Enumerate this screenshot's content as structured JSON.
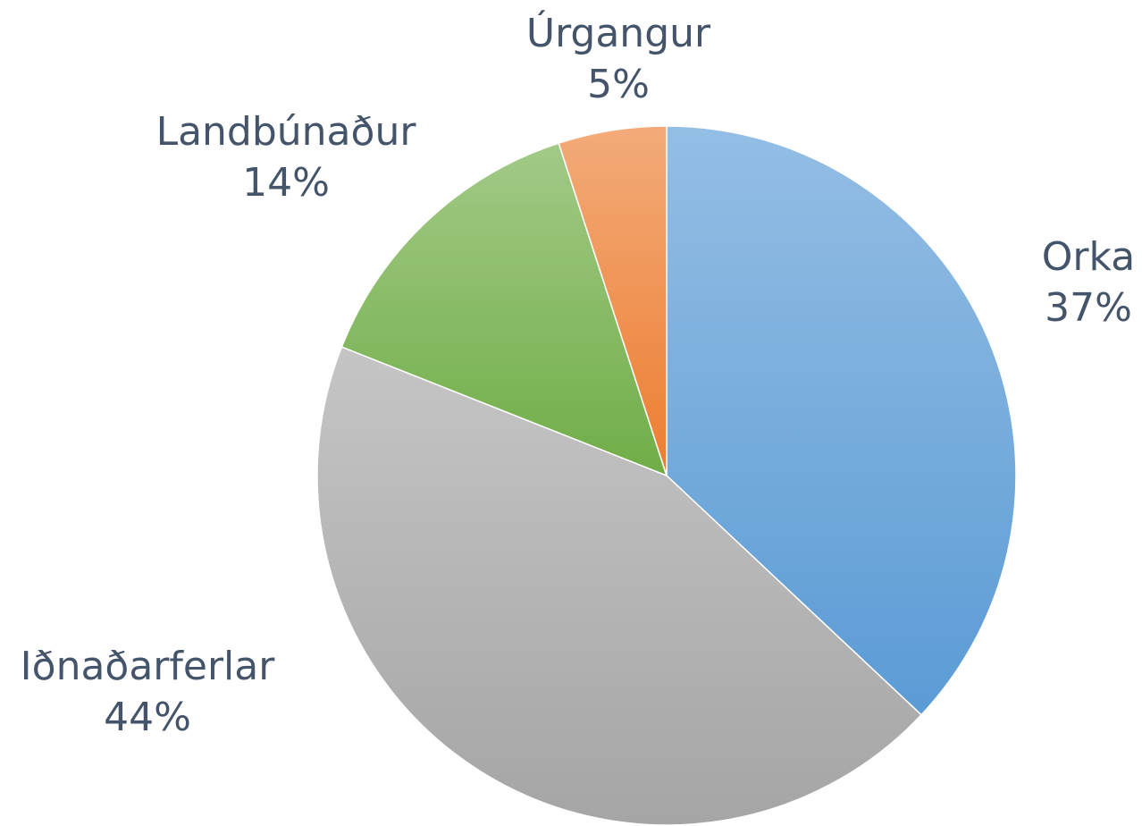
{
  "chart_data": {
    "type": "pie",
    "categories": [
      "Orka",
      "Iðnaðarferlar",
      "Landbúnaður",
      "Úrgangur"
    ],
    "values": [
      37,
      44,
      14,
      5
    ],
    "value_labels": [
      "37%",
      "44%",
      "14%",
      "5%"
    ],
    "colors": [
      "#5b9bd5",
      "#a5a5a5",
      "#70ad47",
      "#ed7d31"
    ]
  }
}
